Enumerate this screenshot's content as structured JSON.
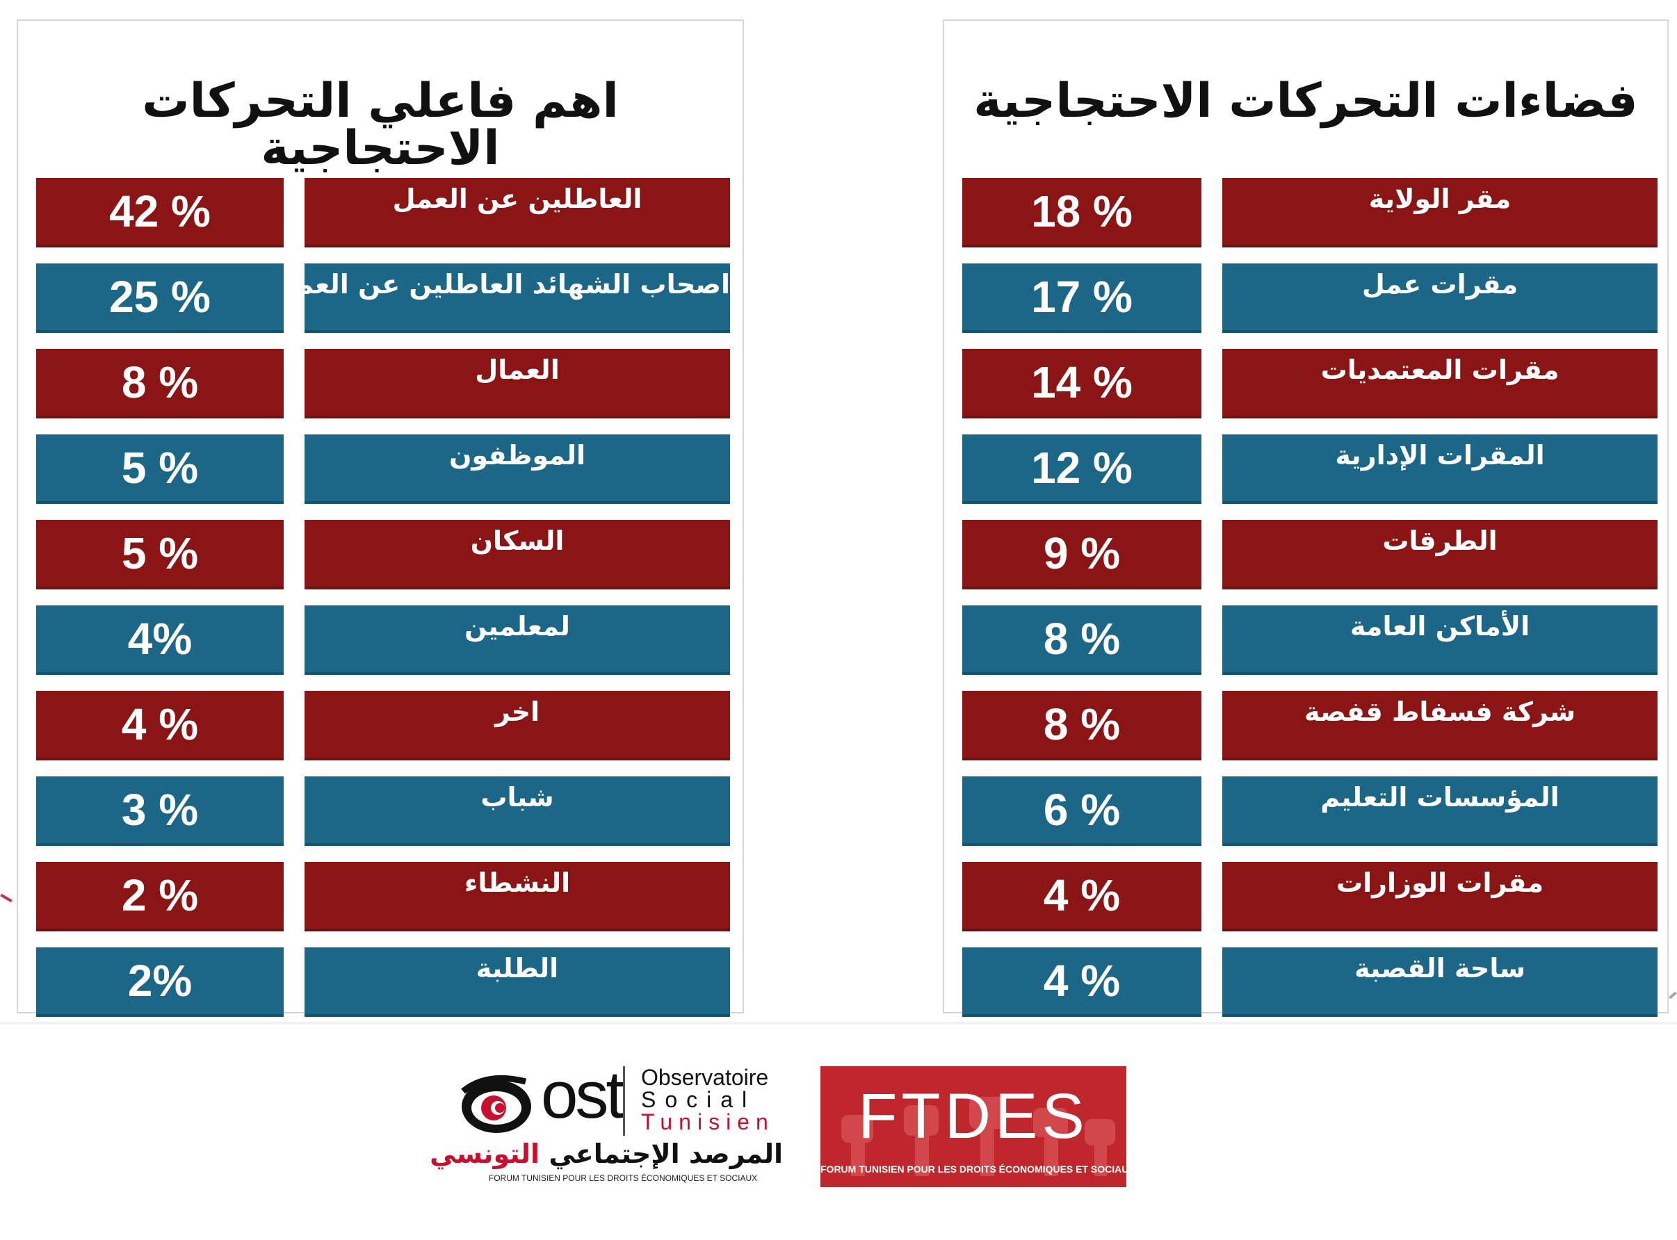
{
  "chart_data": [
    {
      "type": "table",
      "title": "اهم فاعلي التحركات الاحتجاجية",
      "rows": [
        {
          "label": "العاطلين عن العمل",
          "value_text": "42 %",
          "value": 42,
          "color": "red"
        },
        {
          "label": "اصحاب الشهائد العاطلين عن العمل",
          "value_text": "25 %",
          "value": 25,
          "color": "blue"
        },
        {
          "label": "العمال",
          "value_text": "8 %",
          "value": 8,
          "color": "red"
        },
        {
          "label": "الموظفون",
          "value_text": "5 %",
          "value": 5,
          "color": "blue"
        },
        {
          "label": "السكان",
          "value_text": "5 %",
          "value": 5,
          "color": "red"
        },
        {
          "label": "لمعلمين",
          "value_text": "4%",
          "value": 4,
          "color": "blue"
        },
        {
          "label": "اخر",
          "value_text": "4 %",
          "value": 4,
          "color": "red"
        },
        {
          "label": "شباب",
          "value_text": "3 %",
          "value": 3,
          "color": "blue"
        },
        {
          "label": "النشطاء",
          "value_text": "2 %",
          "value": 2,
          "color": "red"
        },
        {
          "label": "الطلبة",
          "value_text": "2%",
          "value": 2,
          "color": "blue"
        }
      ]
    },
    {
      "type": "table",
      "title": "فضاءات التحركات الاحتجاجية",
      "rows": [
        {
          "label": "مقر الولاية",
          "value_text": "18 %",
          "value": 18,
          "color": "red"
        },
        {
          "label": "مقرات عمل",
          "value_text": "17 %",
          "value": 17,
          "color": "blue"
        },
        {
          "label": "مقرات المعتمديات",
          "value_text": "14 %",
          "value": 14,
          "color": "red"
        },
        {
          "label": "المقرات الإدارية",
          "value_text": "12 %",
          "value": 12,
          "color": "blue"
        },
        {
          "label": "الطرقات",
          "value_text": "9 %",
          "value": 9,
          "color": "red"
        },
        {
          "label": "الأماكن العامة",
          "value_text": "8 %",
          "value": 8,
          "color": "blue"
        },
        {
          "label": "شركة فسفاط قفصة",
          "value_text": "8 %",
          "value": 8,
          "color": "red"
        },
        {
          "label": "المؤسسات التعليم",
          "value_text": "6 %",
          "value": 6,
          "color": "blue"
        },
        {
          "label": "مقرات الوزارات",
          "value_text": "4 %",
          "value": 4,
          "color": "red"
        },
        {
          "label": "ساحة القصبة",
          "value_text": "4 %",
          "value": 4,
          "color": "blue"
        }
      ]
    }
  ],
  "colors": {
    "red": "#8b1515",
    "blue": "#1c6688"
  },
  "logos": {
    "ost": {
      "mark": "ost",
      "line1": "Observatoire",
      "line2": "Social",
      "line3": "Tunisien",
      "arabic_black": "المرصد الإجتماعي",
      "arabic_red": "التونسي",
      "forum": "FORUM TUNISIEN POUR LES DROITS ÉCONOMIQUES ET SOCIAUX"
    },
    "ftdes": {
      "name": "FTDES",
      "forum": "FORUM TUNISIEN POUR LES DROITS ÉCONOMIQUES ET SOCIAUX"
    }
  }
}
